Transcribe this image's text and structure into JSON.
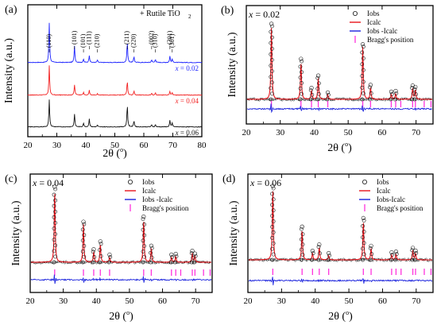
{
  "colors": {
    "obs": "#111111",
    "calc": "#e8141b",
    "diff": "#1a22dd",
    "bragg": "#ff33dd",
    "x002": "#1d24ff",
    "x004": "#f22222",
    "x006": "#111111"
  },
  "chart_data": [
    {
      "panel": "(a)",
      "type": "line",
      "title": "",
      "xlabel": "2θ (°)",
      "ylabel": "Intensity (a.u.)",
      "xlim": [
        20,
        80
      ],
      "xticks": [
        "20",
        "30",
        "40",
        "50",
        "60",
        "70",
        "80"
      ],
      "legend": "+ Rutile TiO₂",
      "peak_labels": [
        "(110)",
        "(101)",
        "(101)",
        "(111)",
        "(210)",
        "(211)",
        "(220)",
        "(002)",
        "(310)",
        "(301)",
        "(301)"
      ],
      "peak_positions": [
        27.4,
        36.1,
        39.2,
        41.2,
        44.0,
        54.3,
        56.6,
        62.7,
        64.0,
        69.0,
        69.8
      ],
      "series": [
        {
          "name": "x = 0.02",
          "offset": 3,
          "peaks": [
            [
              27.4,
              1.0
            ],
            [
              36.1,
              0.42
            ],
            [
              39.2,
              0.08
            ],
            [
              41.2,
              0.18
            ],
            [
              44.0,
              0.06
            ],
            [
              54.3,
              0.52
            ],
            [
              56.6,
              0.15
            ],
            [
              62.7,
              0.07
            ],
            [
              64.0,
              0.08
            ],
            [
              69.0,
              0.16
            ],
            [
              69.8,
              0.08
            ]
          ]
        },
        {
          "name": "x = 0.04",
          "offset": 2,
          "peaks": [
            [
              27.4,
              0.93
            ],
            [
              36.1,
              0.33
            ],
            [
              39.2,
              0.08
            ],
            [
              41.2,
              0.15
            ],
            [
              44.0,
              0.05
            ],
            [
              54.3,
              0.45
            ],
            [
              56.6,
              0.13
            ],
            [
              62.7,
              0.06
            ],
            [
              64.0,
              0.07
            ],
            [
              69.0,
              0.12
            ],
            [
              69.8,
              0.06
            ]
          ]
        },
        {
          "name": "x = 0.06",
          "offset": 1,
          "peaks": [
            [
              27.4,
              0.85
            ],
            [
              36.1,
              0.4
            ],
            [
              39.2,
              0.12
            ],
            [
              41.2,
              0.25
            ],
            [
              44.0,
              0.05
            ],
            [
              54.3,
              0.7
            ],
            [
              56.6,
              0.2
            ],
            [
              62.7,
              0.06
            ],
            [
              64.0,
              0.07
            ],
            [
              69.0,
              0.2
            ],
            [
              69.8,
              0.12
            ]
          ]
        }
      ]
    },
    {
      "panel": "(b)",
      "type": "scatter",
      "title": "x = 0.02",
      "xlabel": "2θ (°)",
      "ylabel": "Intensity (a.u.)",
      "xlim": [
        20,
        75
      ],
      "xticks": [
        "20",
        "30",
        "40",
        "50",
        "60",
        "70"
      ],
      "legend": [
        "Iobs",
        "Icalc",
        "Iobs -Icalc",
        "Bragg's position"
      ],
      "peaks": [
        [
          27.4,
          1.0
        ],
        [
          36.1,
          0.52
        ],
        [
          39.2,
          0.12
        ],
        [
          41.2,
          0.29
        ],
        [
          44.0,
          0.06
        ],
        [
          54.3,
          0.72
        ],
        [
          56.6,
          0.16
        ],
        [
          62.7,
          0.07
        ],
        [
          64.0,
          0.08
        ],
        [
          69.0,
          0.15
        ],
        [
          69.8,
          0.13
        ]
      ],
      "bragg_positions": [
        27.4,
        36.1,
        39.2,
        41.2,
        44.0,
        54.3,
        56.6,
        62.7,
        64.0,
        65.5,
        69.0,
        69.8,
        72.4,
        74.4
      ]
    },
    {
      "panel": "(c)",
      "type": "scatter",
      "title": "x = 0.04",
      "xlabel": "2θ (°)",
      "ylabel": "Intensity (a.u.)",
      "xlim": [
        20,
        75
      ],
      "xticks": [
        "20",
        "30",
        "40",
        "50",
        "60",
        "70"
      ],
      "legend": [
        "Iobs",
        "Icalc",
        "Iobs -Icalc",
        "Bragg's position"
      ],
      "peaks": [
        [
          27.4,
          1.0
        ],
        [
          36.1,
          0.52
        ],
        [
          39.2,
          0.14
        ],
        [
          41.2,
          0.25
        ],
        [
          44.0,
          0.07
        ],
        [
          54.3,
          0.59
        ],
        [
          56.6,
          0.19
        ],
        [
          62.7,
          0.07
        ],
        [
          64.0,
          0.08
        ],
        [
          69.0,
          0.12
        ],
        [
          69.8,
          0.08
        ]
      ],
      "bragg_positions": [
        27.4,
        36.1,
        39.2,
        41.2,
        44.0,
        54.3,
        56.6,
        62.7,
        64.0,
        65.5,
        69.0,
        69.8,
        72.4,
        74.4
      ]
    },
    {
      "panel": "(d)",
      "type": "scatter",
      "title": "x = 0.06",
      "xlabel": "2θ (°)",
      "ylabel": "Intensity (a.u.)",
      "xlim": [
        20,
        75
      ],
      "xticks": [
        "20",
        "30",
        "40",
        "50",
        "60",
        "70"
      ],
      "legend": [
        "Iobs",
        "Icalc",
        "Iobs-Icalc",
        "Bragg's position"
      ],
      "peaks": [
        [
          27.4,
          1.0
        ],
        [
          36.1,
          0.43
        ],
        [
          39.2,
          0.09
        ],
        [
          41.2,
          0.18
        ],
        [
          44.0,
          0.06
        ],
        [
          54.3,
          0.55
        ],
        [
          56.6,
          0.16
        ],
        [
          62.7,
          0.07
        ],
        [
          64.0,
          0.08
        ],
        [
          69.0,
          0.13
        ],
        [
          69.8,
          0.09
        ]
      ],
      "bragg_positions": [
        27.4,
        36.1,
        39.2,
        41.2,
        44.0,
        54.3,
        56.6,
        62.7,
        64.0,
        65.5,
        69.0,
        69.8,
        72.4,
        74.4
      ]
    }
  ]
}
